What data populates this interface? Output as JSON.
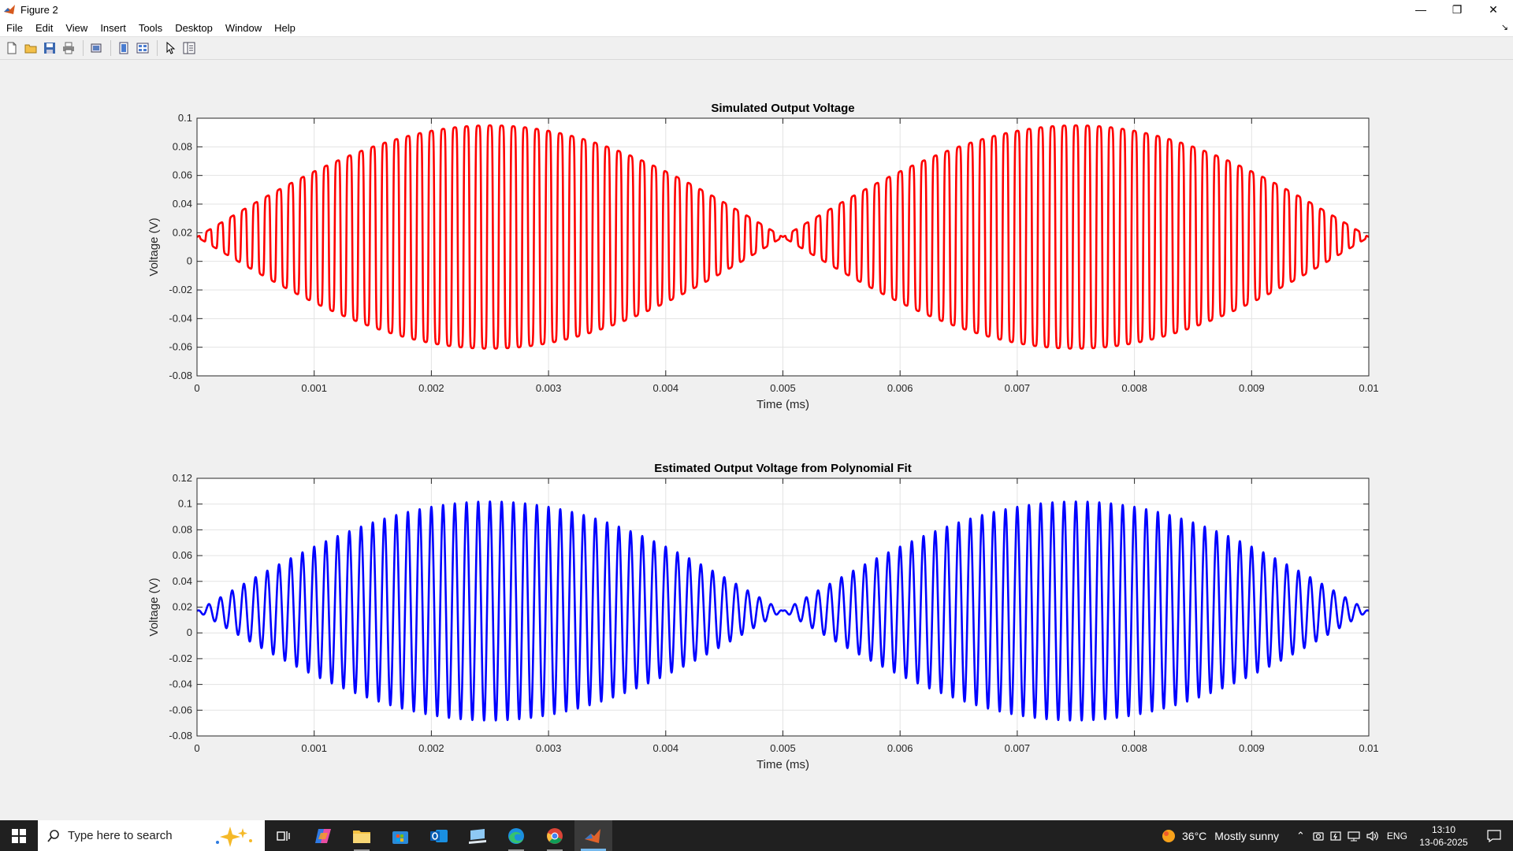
{
  "window": {
    "title": "Figure 2",
    "controls": {
      "minimize": "—",
      "restore": "❐",
      "close": "✕"
    }
  },
  "menu": [
    "File",
    "Edit",
    "View",
    "Insert",
    "Tools",
    "Desktop",
    "Window",
    "Help"
  ],
  "toolbar": {
    "icons": [
      "new-figure-icon",
      "open-file-icon",
      "save-icon",
      "print-icon",
      "print-preview-icon",
      "hide-plot-tools-icon",
      "show-plot-tools-icon",
      "edit-plot-arrow-icon",
      "property-editor-icon"
    ]
  },
  "taskbar": {
    "search_placeholder": "Type here to search",
    "weather": {
      "temperature": "36°C",
      "condition": "Mostly sunny"
    },
    "language": "ENG",
    "time": "13:10",
    "date": "13-06-2025",
    "apps": [
      "task-view-icon",
      "copilot-app-icon",
      "file-explorer-icon",
      "microsoft-store-icon",
      "outlook-icon",
      "remote-desktop-icon",
      "edge-icon",
      "chrome-icon",
      "matlab-icon"
    ]
  },
  "chart_data": [
    {
      "type": "line",
      "title": "Simulated Output Voltage",
      "xlabel": "Time (ms)",
      "ylabel": "Voltage (V)",
      "xlim": [
        0,
        0.01
      ],
      "ylim": [
        -0.08,
        0.1
      ],
      "xticks": [
        "0",
        "0.001",
        "0.002",
        "0.003",
        "0.004",
        "0.005",
        "0.006",
        "0.007",
        "0.008",
        "0.009",
        "0.01"
      ],
      "yticks": [
        "-0.08",
        "-0.06",
        "-0.04",
        "-0.02",
        "0",
        "0.02",
        "0.04",
        "0.06",
        "0.08",
        "0.1"
      ],
      "grid": true,
      "color": "#ff0000",
      "series": [
        {
          "signal": "amplitude-modulated oscillation",
          "offset": 0.017,
          "peak_amplitude": 0.078,
          "oscillation_cycles": 100,
          "envelope_zero_at": [
            0,
            0.005,
            0.01
          ],
          "envelope_peak_at": [
            0.0025,
            0.0075
          ],
          "max": 0.096,
          "min": -0.062,
          "waveform": "square-ish"
        }
      ]
    },
    {
      "type": "line",
      "title": "Estimated Output Voltage from Polynomial Fit",
      "xlabel": "Time (ms)",
      "ylabel": "Voltage (V)",
      "xlim": [
        0,
        0.01
      ],
      "ylim": [
        -0.08,
        0.12
      ],
      "xticks": [
        "0",
        "0.001",
        "0.002",
        "0.003",
        "0.004",
        "0.005",
        "0.006",
        "0.007",
        "0.008",
        "0.009",
        "0.01"
      ],
      "yticks": [
        "-0.08",
        "-0.06",
        "-0.04",
        "-0.02",
        "0",
        "0.02",
        "0.04",
        "0.06",
        "0.08",
        "0.1",
        "0.12"
      ],
      "grid": true,
      "color": "#0000ff",
      "series": [
        {
          "signal": "amplitude-modulated oscillation",
          "offset": 0.017,
          "peak_amplitude": 0.085,
          "oscillation_cycles": 100,
          "envelope_zero_at": [
            0,
            0.005,
            0.01
          ],
          "envelope_peak_at": [
            0.0025,
            0.0075
          ],
          "max": 0.103,
          "min": -0.068,
          "waveform": "sinusoidal"
        }
      ]
    }
  ]
}
